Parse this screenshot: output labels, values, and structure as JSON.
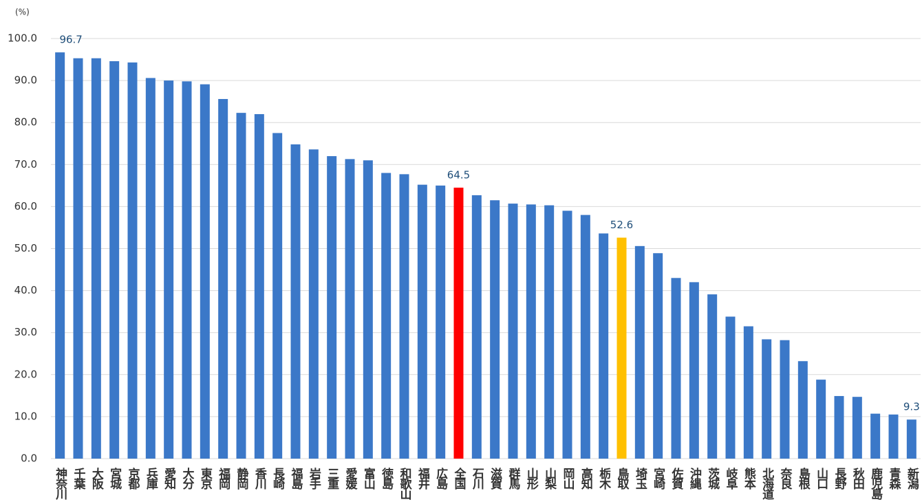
{
  "chart_data": {
    "type": "bar",
    "unit_label": "(%)",
    "categories": [
      "神奈川",
      "千葉",
      "大阪",
      "宮城",
      "京都",
      "兵庫",
      "愛知",
      "大分",
      "東京",
      "福岡",
      "静岡",
      "香川",
      "長崎",
      "福島",
      "岩手",
      "三重",
      "愛媛",
      "富山",
      "徳島",
      "和歌山",
      "福井",
      "広島",
      "全国",
      "石川",
      "滋賀",
      "群馬",
      "山形",
      "山梨",
      "岡山",
      "高知",
      "栃木",
      "鳥取",
      "埼玉",
      "宮崎",
      "佐賀",
      "沖縄",
      "茨城",
      "岐阜",
      "熊本",
      "北海道",
      "奈良",
      "島根",
      "山口",
      "長野",
      "秋田",
      "鹿児島",
      "青森",
      "新潟"
    ],
    "values": [
      96.7,
      95.3,
      95.3,
      94.6,
      94.3,
      90.6,
      90.0,
      89.8,
      89.1,
      85.6,
      82.3,
      82.0,
      77.5,
      74.8,
      73.6,
      72.0,
      71.3,
      71.0,
      68.0,
      67.7,
      65.2,
      65.0,
      64.5,
      62.7,
      61.5,
      60.7,
      60.5,
      60.3,
      59.0,
      58.0,
      53.6,
      52.6,
      50.6,
      48.9,
      43.0,
      42.0,
      39.1,
      33.8,
      31.5,
      28.4,
      28.2,
      23.2,
      18.8,
      14.9,
      14.7,
      10.7,
      10.5,
      9.3
    ],
    "value_labels": [
      "96.7",
      null,
      null,
      null,
      null,
      null,
      null,
      null,
      null,
      null,
      null,
      null,
      null,
      null,
      null,
      null,
      null,
      null,
      null,
      null,
      null,
      null,
      "64.5",
      null,
      null,
      null,
      null,
      null,
      null,
      null,
      null,
      "52.6",
      null,
      null,
      null,
      null,
      null,
      null,
      null,
      null,
      null,
      null,
      null,
      null,
      null,
      null,
      null,
      "9.3"
    ],
    "colors": [
      "#3b78c8",
      "#3b78c8",
      "#3b78c8",
      "#3b78c8",
      "#3b78c8",
      "#3b78c8",
      "#3b78c8",
      "#3b78c8",
      "#3b78c8",
      "#3b78c8",
      "#3b78c8",
      "#3b78c8",
      "#3b78c8",
      "#3b78c8",
      "#3b78c8",
      "#3b78c8",
      "#3b78c8",
      "#3b78c8",
      "#3b78c8",
      "#3b78c8",
      "#3b78c8",
      "#3b78c8",
      "#ff0000",
      "#3b78c8",
      "#3b78c8",
      "#3b78c8",
      "#3b78c8",
      "#3b78c8",
      "#3b78c8",
      "#3b78c8",
      "#3b78c8",
      "#ffc000",
      "#3b78c8",
      "#3b78c8",
      "#3b78c8",
      "#3b78c8",
      "#3b78c8",
      "#3b78c8",
      "#3b78c8",
      "#3b78c8",
      "#3b78c8",
      "#3b78c8",
      "#3b78c8",
      "#3b78c8",
      "#3b78c8",
      "#3b78c8",
      "#3b78c8",
      "#3b78c8"
    ],
    "ylim": [
      0,
      100
    ],
    "yticks": [
      {
        "value": 0,
        "label": "0.0"
      },
      {
        "value": 10,
        "label": "10.0"
      },
      {
        "value": 20,
        "label": "20.0"
      },
      {
        "value": 30,
        "label": "30.0"
      },
      {
        "value": 40,
        "label": "40.0"
      },
      {
        "value": 50,
        "label": "50.0"
      },
      {
        "value": 60,
        "label": "60.0"
      },
      {
        "value": 70,
        "label": "70.0"
      },
      {
        "value": 80,
        "label": "80.0"
      },
      {
        "value": 90,
        "label": "90.0"
      },
      {
        "value": 100,
        "label": "100.0"
      }
    ],
    "grid": true
  }
}
